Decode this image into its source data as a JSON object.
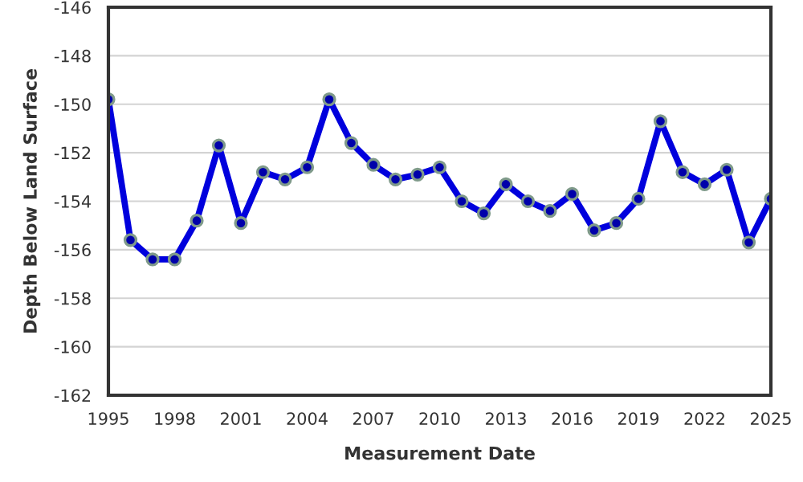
{
  "chart_data": {
    "type": "line",
    "xlabel": "Measurement Date",
    "ylabel": "Depth Below Land Surface",
    "x": [
      1995,
      1996,
      1997,
      1998,
      1999,
      2000,
      2001,
      2002,
      2003,
      2004,
      2005,
      2006,
      2007,
      2008,
      2009,
      2010,
      2011,
      2012,
      2013,
      2014,
      2015,
      2016,
      2017,
      2018,
      2019,
      2020,
      2021,
      2022,
      2023,
      2024,
      2025
    ],
    "series": [
      {
        "color": "#0000dd",
        "values": [
          -149.8,
          -155.6,
          -156.4,
          -156.4,
          -154.8,
          -151.7,
          -154.9,
          -152.8,
          -153.1,
          -152.6,
          -149.8,
          -151.6,
          -152.5,
          -153.1,
          -152.9,
          -152.6,
          -154.0,
          -154.5,
          -153.3,
          -154.0,
          -154.4,
          -153.7,
          -155.2,
          -154.9,
          -153.9,
          -150.7,
          -152.8,
          -153.3,
          -152.7,
          -155.7,
          -153.9
        ]
      }
    ],
    "xlim": [
      1995,
      2025
    ],
    "xticks": [
      1995,
      1998,
      2001,
      2004,
      2007,
      2010,
      2013,
      2016,
      2019,
      2022,
      2025
    ],
    "ylim": [
      -162,
      -146
    ],
    "yticks": [
      -162,
      -160,
      -158,
      -156,
      -154,
      -152,
      -150,
      -148,
      -146
    ],
    "grid": "y",
    "marker": "circle",
    "line_style": "solid"
  }
}
